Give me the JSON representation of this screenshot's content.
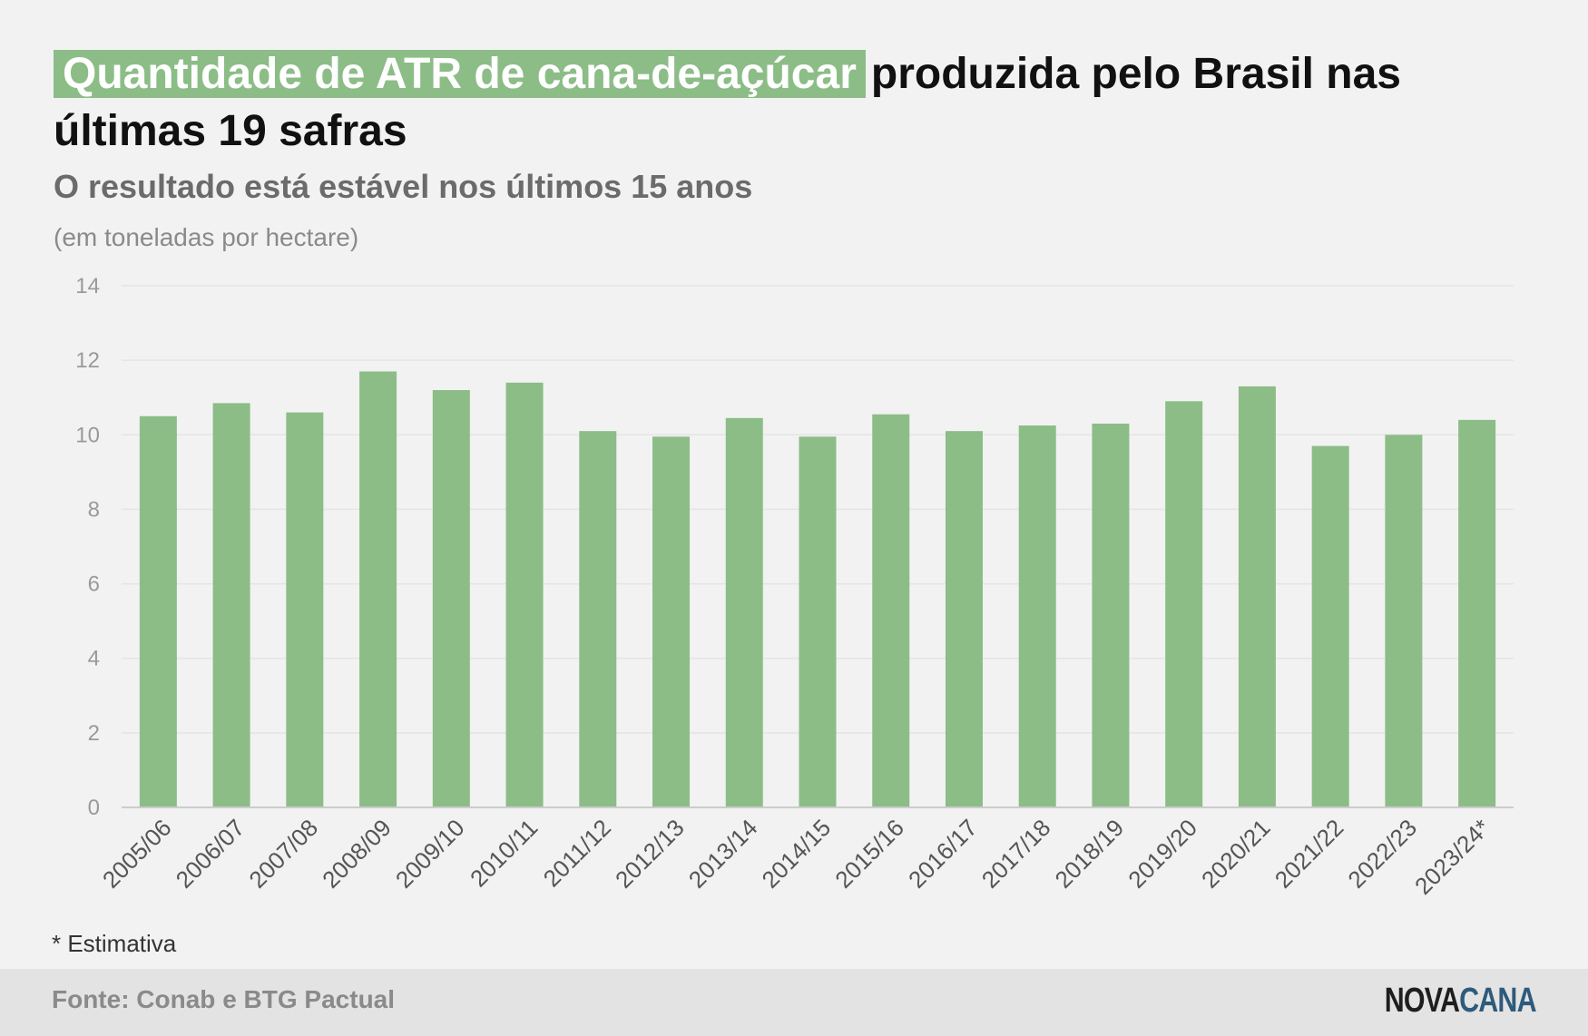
{
  "header": {
    "title_highlight": "Quantidade de ATR de cana-de-açúcar",
    "title_rest": "produzida pelo Brasil nas últimas 19 safras",
    "subtitle": "O resultado está estável nos últimos 15 anos",
    "unit": "(em toneladas por hectare)"
  },
  "note": "* Estimativa",
  "footer": {
    "source": "Fonte: Conab e BTG Pactual",
    "logo_part1": "NOVA",
    "logo_part2": "CANA"
  },
  "colors": {
    "bar": "#8cbd87",
    "grid": "#e4e4e4",
    "axis_text": "#9a9a9a",
    "category_text": "#555555"
  },
  "chart_data": {
    "type": "bar",
    "categories": [
      "2005/06",
      "2006/07",
      "2007/08",
      "2008/09",
      "2009/10",
      "2010/11",
      "2011/12",
      "2012/13",
      "2013/14",
      "2014/15",
      "2015/16",
      "2016/17",
      "2017/18",
      "2018/19",
      "2019/20",
      "2020/21",
      "2021/22",
      "2022/23",
      "2023/24*"
    ],
    "values": [
      10.5,
      10.85,
      10.6,
      11.7,
      11.2,
      11.4,
      10.1,
      9.95,
      10.45,
      9.95,
      10.55,
      10.1,
      10.25,
      10.3,
      10.9,
      11.3,
      9.7,
      10.0,
      10.4
    ],
    "yticks": [
      0,
      2,
      4,
      6,
      8,
      10,
      12,
      14
    ],
    "ylim": [
      0,
      14
    ],
    "grid": true,
    "legend": "none"
  }
}
